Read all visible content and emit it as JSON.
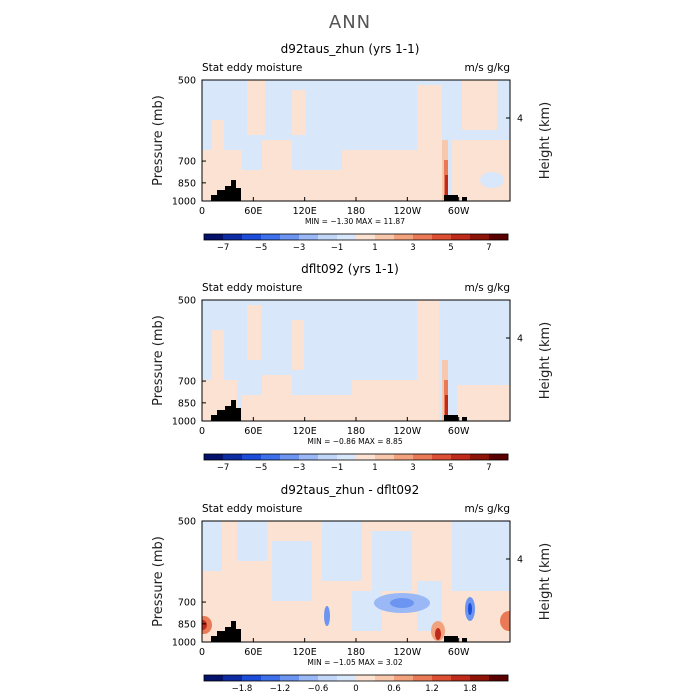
{
  "page_title": "ANN",
  "chart_data": [
    {
      "type": "heatmap",
      "title": "d92taus_zhun (yrs 1-1)",
      "left_label": "Stat eddy moisture",
      "right_label": "m/s g/kg",
      "ylabel": "Pressure (mb)",
      "ylabel_right": "Height (km)",
      "yticks": [
        "500",
        "700",
        "850",
        "1000"
      ],
      "yticks_right": [
        "4"
      ],
      "xticks": [
        "0",
        "60E",
        "120E",
        "180",
        "120W",
        "60W"
      ],
      "stats_text": "MIN =   −1.30   MAX =   11.87",
      "colorbar_ticks": [
        "−7",
        "−5",
        "−3",
        "−1",
        "1",
        "3",
        "5",
        "7"
      ],
      "colorbar_colors": [
        "#05126b",
        "#0d2ca3",
        "#1b4dd8",
        "#3c6fe9",
        "#6b95f0",
        "#9ab8f5",
        "#c2d6f8",
        "#d9e7fb",
        "#fbe2d2",
        "#f7c8ac",
        "#f2a37e",
        "#ea7a55",
        "#dc4f33",
        "#c02a1a",
        "#8f1408",
        "#5a0000"
      ],
      "stats": {
        "min": -1.3,
        "max": 11.87
      }
    },
    {
      "type": "heatmap",
      "title": "dflt092 (yrs 1-1)",
      "left_label": "Stat eddy moisture",
      "right_label": "m/s g/kg",
      "ylabel": "Pressure (mb)",
      "ylabel_right": "Height (km)",
      "yticks": [
        "500",
        "700",
        "850",
        "1000"
      ],
      "yticks_right": [
        "4"
      ],
      "xticks": [
        "0",
        "60E",
        "120E",
        "180",
        "120W",
        "60W"
      ],
      "stats_text": "MIN =   −0.86   MAX =   8.85",
      "colorbar_ticks": [
        "−7",
        "−5",
        "−3",
        "−1",
        "1",
        "3",
        "5",
        "7"
      ],
      "colorbar_colors": [
        "#05126b",
        "#0d2ca3",
        "#1b4dd8",
        "#3c6fe9",
        "#6b95f0",
        "#9ab8f5",
        "#c2d6f8",
        "#d9e7fb",
        "#fbe2d2",
        "#f7c8ac",
        "#f2a37e",
        "#ea7a55",
        "#dc4f33",
        "#c02a1a",
        "#8f1408",
        "#5a0000"
      ],
      "stats": {
        "min": -0.86,
        "max": 8.85
      }
    },
    {
      "type": "heatmap",
      "title": "d92taus_zhun - dflt092",
      "left_label": "Stat eddy moisture",
      "right_label": "m/s g/kg",
      "ylabel": "Pressure (mb)",
      "ylabel_right": "Height (km)",
      "yticks": [
        "500",
        "700",
        "850",
        "1000"
      ],
      "yticks_right": [
        "4"
      ],
      "xticks": [
        "0",
        "60E",
        "120E",
        "180",
        "120W",
        "60W"
      ],
      "stats_text": "MIN =   −1.05   MAX =   3.02",
      "colorbar_ticks": [
        "−1.8",
        "−1.2",
        "−0.6",
        "0",
        "0.6",
        "1.2",
        "1.8"
      ],
      "colorbar_colors": [
        "#05126b",
        "#0d2ca3",
        "#1b4dd8",
        "#3c6fe9",
        "#6b95f0",
        "#9ab8f5",
        "#c2d6f8",
        "#d9e7fb",
        "#fbe2d2",
        "#f7c8ac",
        "#f2a37e",
        "#ea7a55",
        "#dc4f33",
        "#c02a1a",
        "#8f1408",
        "#5a0000"
      ],
      "stats": {
        "min": -1.05,
        "max": 3.02
      }
    }
  ]
}
